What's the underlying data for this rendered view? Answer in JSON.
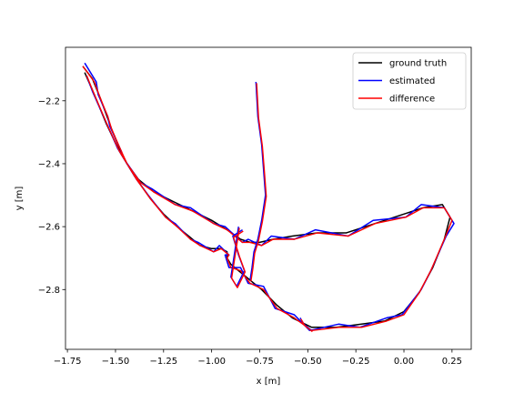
{
  "chart_data": {
    "type": "line",
    "title": "",
    "xlabel": "x [m]",
    "ylabel": "y [m]",
    "xlim": [
      -1.76,
      0.35
    ],
    "ylim": [
      -2.99,
      -2.03
    ],
    "xticks": [
      -1.75,
      -1.5,
      -1.25,
      -1.0,
      -0.75,
      -0.5,
      -0.25,
      0.0,
      0.25
    ],
    "xtick_labels": [
      "−1.75",
      "−1.50",
      "−1.25",
      "−1.00",
      "−0.75",
      "−0.50",
      "−0.25",
      "0.00",
      "0.25"
    ],
    "yticks": [
      -2.8,
      -2.6,
      -2.4,
      -2.2
    ],
    "ytick_labels": [
      "−2.8",
      "−2.6",
      "−2.4",
      "−2.2"
    ],
    "grid": false,
    "legend_position": "top-right",
    "series": [
      {
        "name": "ground truth",
        "color": "#000000",
        "x": [
          -1.67,
          -1.62,
          -1.58,
          -1.55,
          -1.52,
          -1.48,
          -1.44,
          -1.38,
          -1.3,
          -1.2,
          -1.1,
          -1.0,
          -0.92,
          -0.85,
          -0.8,
          -0.75,
          -0.68,
          -0.58,
          -0.45,
          -0.3,
          -0.15,
          0.0,
          0.1,
          0.2,
          0.24,
          0.21,
          0.15,
          0.08,
          0.0,
          -0.1,
          -0.22,
          -0.35,
          -0.48,
          -0.58,
          -0.66,
          -0.74,
          -0.8,
          -0.86,
          -0.9,
          -0.92,
          -0.92,
          -0.95,
          -1.0,
          -1.06,
          -1.12,
          -1.18,
          -1.25,
          -1.32,
          -1.4,
          -1.48,
          -1.55,
          -1.61,
          -1.66
        ],
        "y": [
          -2.09,
          -2.13,
          -2.19,
          -2.24,
          -2.29,
          -2.35,
          -2.4,
          -2.45,
          -2.49,
          -2.52,
          -2.55,
          -2.58,
          -2.61,
          -2.64,
          -2.65,
          -2.65,
          -2.64,
          -2.63,
          -2.62,
          -2.62,
          -2.59,
          -2.56,
          -2.54,
          -2.53,
          -2.57,
          -2.64,
          -2.73,
          -2.81,
          -2.87,
          -2.9,
          -2.91,
          -2.92,
          -2.92,
          -2.89,
          -2.85,
          -2.8,
          -2.77,
          -2.74,
          -2.72,
          -2.7,
          -2.68,
          -2.67,
          -2.67,
          -2.66,
          -2.63,
          -2.6,
          -2.56,
          -2.51,
          -2.44,
          -2.36,
          -2.27,
          -2.18,
          -2.11
        ]
      },
      {
        "name": "estimated",
        "color": "#0000ff",
        "x": [
          -1.66,
          -1.6,
          -1.59,
          -1.54,
          -1.53,
          -1.47,
          -1.45,
          -1.37,
          -1.31,
          -1.19,
          -1.11,
          -0.99,
          -0.93,
          -0.84,
          -0.81,
          -0.74,
          -0.69,
          -0.57,
          -0.46,
          -0.29,
          -0.16,
          0.01,
          0.09,
          0.21,
          0.26,
          0.22,
          0.14,
          0.09,
          -0.01,
          -0.09,
          -0.23,
          -0.34,
          -0.49,
          -0.57,
          -0.67,
          -0.73,
          -0.81,
          -0.85,
          -0.91,
          -0.93,
          -0.91,
          -0.96,
          -0.99,
          -1.07,
          -1.11,
          -1.19,
          -1.24,
          -1.33,
          -1.39,
          -1.49,
          -1.54,
          -1.62,
          -1.65
        ],
        "y": [
          -2.08,
          -2.14,
          -2.18,
          -2.25,
          -2.28,
          -2.36,
          -2.39,
          -2.46,
          -2.48,
          -2.53,
          -2.54,
          -2.59,
          -2.6,
          -2.65,
          -2.64,
          -2.66,
          -2.63,
          -2.64,
          -2.61,
          -2.63,
          -2.58,
          -2.57,
          -2.53,
          -2.54,
          -2.59,
          -2.63,
          -2.74,
          -2.8,
          -2.88,
          -2.89,
          -2.92,
          -2.91,
          -2.93,
          -2.88,
          -2.86,
          -2.79,
          -2.78,
          -2.73,
          -2.73,
          -2.69,
          -2.69,
          -2.66,
          -2.68,
          -2.65,
          -2.64,
          -2.59,
          -2.57,
          -2.5,
          -2.45,
          -2.35,
          -2.28,
          -2.17,
          -2.12
        ]
      },
      {
        "name": "difference",
        "color": "#ff0000",
        "x": [
          -1.67,
          -1.61,
          -1.58,
          -1.54,
          -1.52,
          -1.47,
          -1.44,
          -1.37,
          -1.3,
          -1.19,
          -1.1,
          -0.99,
          -0.92,
          -0.84,
          -0.8,
          -0.74,
          -0.68,
          -0.57,
          -0.45,
          -0.29,
          -0.15,
          0.01,
          0.1,
          0.21,
          0.25,
          0.21,
          0.14,
          0.08,
          0.0,
          -0.09,
          -0.22,
          -0.34,
          -0.48,
          -0.57,
          -0.66,
          -0.73,
          -0.8,
          -0.85,
          -0.9,
          -0.92,
          -0.91,
          -0.95,
          -0.99,
          -1.06,
          -1.11,
          -1.18,
          -1.24,
          -1.32,
          -1.39,
          -1.48,
          -1.54,
          -1.61,
          -1.65
        ],
        "y": [
          -2.09,
          -2.14,
          -2.19,
          -2.25,
          -2.29,
          -2.36,
          -2.4,
          -2.46,
          -2.49,
          -2.53,
          -2.55,
          -2.59,
          -2.61,
          -2.65,
          -2.65,
          -2.66,
          -2.64,
          -2.64,
          -2.62,
          -2.63,
          -2.59,
          -2.57,
          -2.54,
          -2.54,
          -2.58,
          -2.64,
          -2.74,
          -2.81,
          -2.88,
          -2.9,
          -2.92,
          -2.92,
          -2.93,
          -2.89,
          -2.86,
          -2.8,
          -2.78,
          -2.74,
          -2.73,
          -2.7,
          -2.69,
          -2.67,
          -2.68,
          -2.66,
          -2.64,
          -2.6,
          -2.57,
          -2.51,
          -2.45,
          -2.36,
          -2.28,
          -2.18,
          -2.12
        ]
      }
    ],
    "branch_segments": [
      {
        "x": [
          -0.77,
          -0.76,
          -0.74,
          -0.73,
          -0.72,
          -0.74,
          -0.76,
          -0.78,
          -0.79,
          -0.8
        ],
        "y": [
          -2.14,
          -2.25,
          -2.34,
          -2.42,
          -2.5,
          -2.58,
          -2.64,
          -2.68,
          -2.73,
          -2.77
        ]
      },
      {
        "x": [
          -0.86,
          -0.88,
          -0.9,
          -0.87,
          -0.83,
          -0.86,
          -0.89,
          -0.84
        ],
        "y": [
          -2.6,
          -2.68,
          -2.76,
          -2.79,
          -2.74,
          -2.69,
          -2.63,
          -2.61
        ]
      },
      {
        "x": [
          -0.48,
          -0.52,
          -0.54
        ],
        "y": [
          -2.93,
          -2.91,
          -2.89
        ]
      }
    ]
  }
}
